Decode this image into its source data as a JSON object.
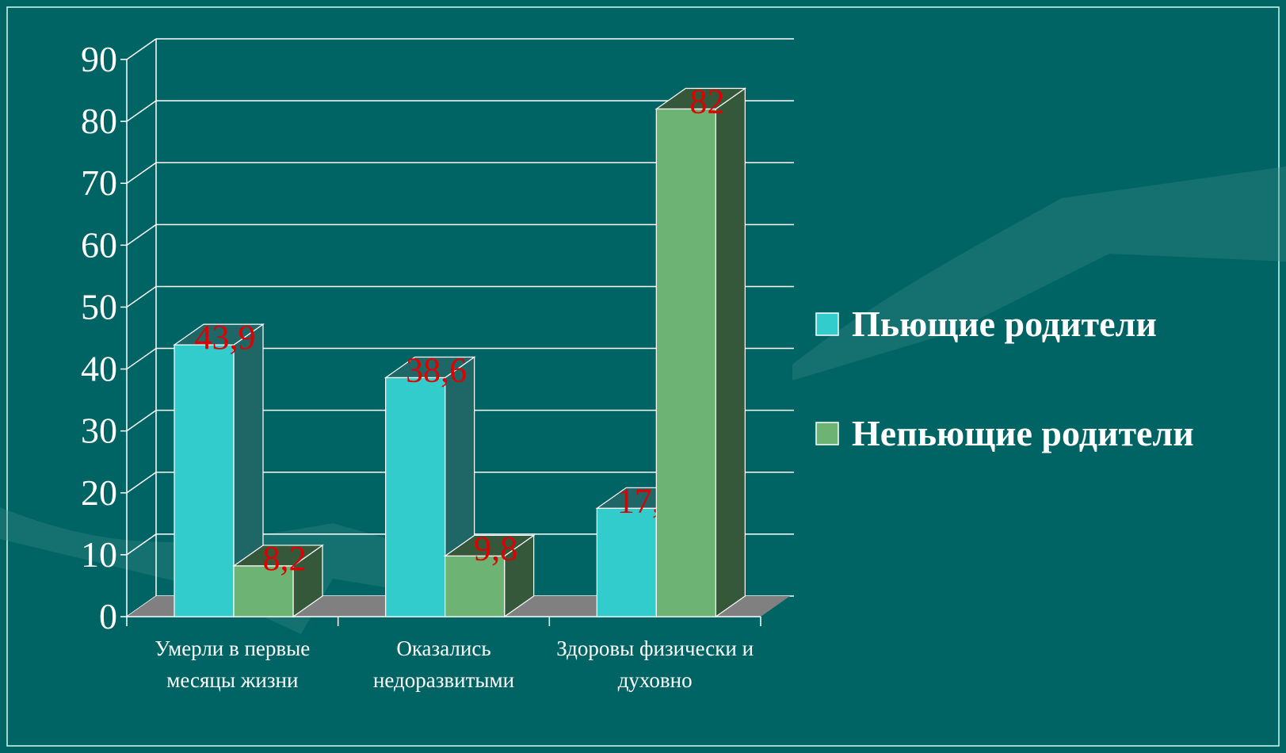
{
  "chart_data": {
    "type": "bar3d",
    "categories": [
      "Умерли в первые месяцы жизни",
      "Оказались недоразвитыми",
      "Здоровы физически и духовно"
    ],
    "series": [
      {
        "name": "Пьющие родители",
        "color": "#33cccc",
        "side": "#1f6666",
        "values": [
          43.9,
          38.6,
          17.5
        ],
        "value_labels": [
          "43,9",
          "38,6",
          "17,5"
        ]
      },
      {
        "name": "Непьющие родители",
        "color": "#6db373",
        "side": "#36583a",
        "values": [
          8.2,
          9.8,
          82
        ],
        "value_labels": [
          "8,2",
          "9,8",
          "82"
        ]
      }
    ],
    "ylim": [
      0,
      90
    ],
    "yticks": [
      0,
      10,
      20,
      30,
      40,
      50,
      60,
      70,
      80,
      90
    ],
    "grid": true,
    "label_color": "#e00000",
    "legend": "right"
  }
}
